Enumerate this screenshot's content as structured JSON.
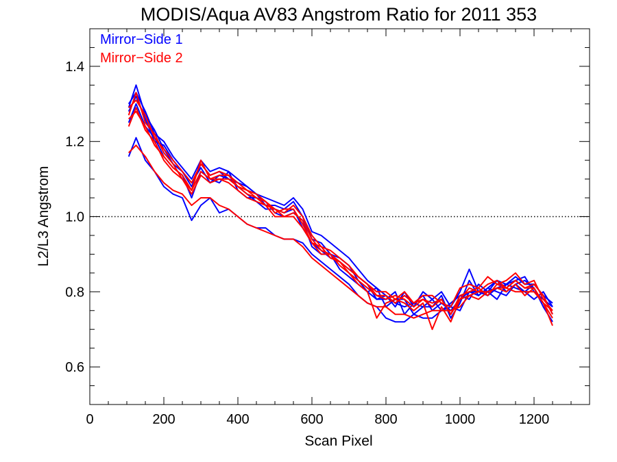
{
  "chart_data": {
    "type": "line",
    "title": "MODIS/Aqua AV83 Angstrom Ratio for 2011 353",
    "xlabel": "Scan Pixel",
    "ylabel": "L2/L3 Angstrom",
    "xlim": [
      0,
      1350
    ],
    "ylim": [
      0.5,
      1.5
    ],
    "xticks": [
      0,
      200,
      400,
      600,
      800,
      1000,
      1200
    ],
    "xtick_labels": [
      "0",
      "200",
      "400",
      "600",
      "800",
      "1000",
      "1200"
    ],
    "yticks": [
      0.6,
      0.8,
      1.0,
      1.2,
      1.4
    ],
    "ytick_labels": [
      "0.6",
      "0.8",
      "1.0",
      "1.2",
      "1.4"
    ],
    "reference_line": {
      "y": 1.0,
      "style": "dotted"
    },
    "legend": {
      "placement": "top-left",
      "entries": [
        {
          "label": "Mirror−Side 1",
          "color": "#0000ff"
        },
        {
          "label": "Mirror−Side 2",
          "color": "#ff0000"
        }
      ]
    },
    "x": [
      105,
      125,
      150,
      175,
      200,
      225,
      250,
      275,
      300,
      325,
      350,
      375,
      400,
      425,
      450,
      475,
      500,
      525,
      550,
      575,
      600,
      625,
      650,
      675,
      700,
      725,
      750,
      775,
      800,
      825,
      850,
      875,
      900,
      925,
      950,
      975,
      1000,
      1025,
      1050,
      1075,
      1100,
      1125,
      1150,
      1175,
      1200,
      1225,
      1250
    ],
    "series": [
      {
        "group": 1,
        "color": "#0000ff",
        "values": [
          1.29,
          1.35,
          1.27,
          1.23,
          1.18,
          1.14,
          1.12,
          1.08,
          1.14,
          1.11,
          1.12,
          1.1,
          1.08,
          1.06,
          1.04,
          1.02,
          1.02,
          1.01,
          1.02,
          0.97,
          0.93,
          0.91,
          0.89,
          0.88,
          0.86,
          0.84,
          0.82,
          0.78,
          0.79,
          0.77,
          0.76,
          0.77,
          0.79,
          0.75,
          0.77,
          0.75,
          0.78,
          0.8,
          0.8,
          0.79,
          0.81,
          0.82,
          0.83,
          0.84,
          0.8,
          0.78,
          0.76
        ]
      },
      {
        "group": 1,
        "color": "#0000ff",
        "values": [
          1.25,
          1.3,
          1.24,
          1.21,
          1.16,
          1.13,
          1.11,
          1.05,
          1.12,
          1.1,
          1.09,
          1.12,
          1.07,
          1.05,
          1.05,
          1.04,
          1.01,
          1.0,
          1.01,
          0.99,
          0.92,
          0.9,
          0.9,
          0.86,
          0.84,
          0.82,
          0.8,
          0.81,
          0.76,
          0.78,
          0.78,
          0.74,
          0.76,
          0.78,
          0.75,
          0.77,
          0.79,
          0.78,
          0.82,
          0.8,
          0.78,
          0.82,
          0.81,
          0.8,
          0.82,
          0.79,
          0.74
        ]
      },
      {
        "group": 1,
        "color": "#0000ff",
        "values": [
          1.28,
          1.32,
          1.26,
          1.2,
          1.19,
          1.15,
          1.12,
          1.09,
          1.13,
          1.09,
          1.11,
          1.1,
          1.09,
          1.08,
          1.06,
          1.03,
          1.03,
          1.02,
          1.04,
          1.0,
          0.94,
          0.93,
          0.9,
          0.89,
          0.87,
          0.83,
          0.8,
          0.78,
          0.78,
          0.8,
          0.74,
          0.77,
          0.76,
          0.76,
          0.79,
          0.73,
          0.77,
          0.83,
          0.79,
          0.81,
          0.83,
          0.8,
          0.82,
          0.83,
          0.81,
          0.76,
          0.72
        ]
      },
      {
        "group": 1,
        "color": "#0000ff",
        "values": [
          1.3,
          1.33,
          1.28,
          1.22,
          1.2,
          1.16,
          1.13,
          1.1,
          1.15,
          1.12,
          1.13,
          1.12,
          1.1,
          1.08,
          1.06,
          1.05,
          1.04,
          1.03,
          1.05,
          1.02,
          0.96,
          0.95,
          0.93,
          0.91,
          0.89,
          0.86,
          0.83,
          0.81,
          0.79,
          0.76,
          0.8,
          0.76,
          0.8,
          0.78,
          0.8,
          0.76,
          0.8,
          0.86,
          0.8,
          0.8,
          0.83,
          0.82,
          0.84,
          0.82,
          0.82,
          0.79,
          0.77
        ]
      },
      {
        "group": 1,
        "color": "#0000ff",
        "values": [
          1.16,
          1.21,
          1.15,
          1.12,
          1.08,
          1.06,
          1.05,
          0.99,
          1.03,
          1.05,
          1.01,
          1.02,
          1.0,
          0.98,
          0.97,
          0.97,
          0.95,
          0.94,
          0.94,
          0.93,
          0.9,
          0.88,
          0.86,
          0.84,
          0.82,
          0.79,
          0.77,
          0.76,
          0.73,
          0.72,
          0.72,
          0.74,
          0.73,
          0.73,
          0.75,
          0.76,
          0.75,
          0.8,
          0.79,
          0.81,
          0.8,
          0.79,
          0.82,
          0.8,
          0.78,
          0.8,
          0.76
        ]
      },
      {
        "group": 2,
        "color": "#ff0000",
        "values": [
          1.27,
          1.33,
          1.25,
          1.22,
          1.17,
          1.14,
          1.1,
          1.07,
          1.15,
          1.1,
          1.11,
          1.11,
          1.08,
          1.07,
          1.05,
          1.04,
          1.01,
          1.02,
          1.02,
          0.98,
          0.93,
          0.92,
          0.89,
          0.88,
          0.86,
          0.84,
          0.82,
          0.79,
          0.78,
          0.79,
          0.78,
          0.76,
          0.78,
          0.76,
          0.78,
          0.74,
          0.79,
          0.8,
          0.81,
          0.79,
          0.82,
          0.81,
          0.83,
          0.81,
          0.82,
          0.79,
          0.74
        ]
      },
      {
        "group": 2,
        "color": "#ff0000",
        "values": [
          1.24,
          1.29,
          1.23,
          1.2,
          1.15,
          1.12,
          1.1,
          1.06,
          1.11,
          1.09,
          1.1,
          1.09,
          1.07,
          1.05,
          1.04,
          1.03,
          1.0,
          1.0,
          1.0,
          0.97,
          0.93,
          0.9,
          0.9,
          0.87,
          0.85,
          0.82,
          0.8,
          0.73,
          0.77,
          0.78,
          0.77,
          0.75,
          0.77,
          0.7,
          0.76,
          0.72,
          0.78,
          0.79,
          0.8,
          0.8,
          0.81,
          0.8,
          0.82,
          0.79,
          0.81,
          0.77,
          0.71
        ]
      },
      {
        "group": 2,
        "color": "#ff0000",
        "values": [
          1.29,
          1.31,
          1.27,
          1.21,
          1.18,
          1.15,
          1.12,
          1.09,
          1.14,
          1.11,
          1.12,
          1.11,
          1.09,
          1.07,
          1.06,
          1.04,
          1.02,
          1.01,
          1.03,
          1.0,
          0.95,
          0.92,
          0.91,
          0.89,
          0.87,
          0.84,
          0.82,
          0.8,
          0.8,
          0.78,
          0.8,
          0.77,
          0.79,
          0.79,
          0.77,
          0.76,
          0.81,
          0.82,
          0.81,
          0.84,
          0.82,
          0.83,
          0.85,
          0.82,
          0.83,
          0.78,
          0.75
        ]
      },
      {
        "group": 2,
        "color": "#ff0000",
        "values": [
          1.26,
          1.28,
          1.24,
          1.19,
          1.16,
          1.13,
          1.11,
          1.07,
          1.12,
          1.1,
          1.1,
          1.1,
          1.08,
          1.06,
          1.05,
          1.03,
          1.02,
          1.0,
          1.01,
          0.99,
          0.94,
          0.91,
          0.9,
          0.88,
          0.85,
          0.83,
          0.81,
          0.79,
          0.79,
          0.77,
          0.79,
          0.77,
          0.78,
          0.77,
          0.78,
          0.74,
          0.78,
          0.81,
          0.8,
          0.82,
          0.83,
          0.81,
          0.83,
          0.81,
          0.81,
          0.77,
          0.73
        ]
      },
      {
        "group": 2,
        "color": "#ff0000",
        "values": [
          1.17,
          1.19,
          1.16,
          1.12,
          1.09,
          1.07,
          1.06,
          1.03,
          1.05,
          1.05,
          1.03,
          1.02,
          1.0,
          0.98,
          0.97,
          0.96,
          0.95,
          0.94,
          0.94,
          0.92,
          0.89,
          0.87,
          0.85,
          0.83,
          0.81,
          0.79,
          0.77,
          0.76,
          0.76,
          0.74,
          0.74,
          0.73,
          0.74,
          0.75,
          0.75,
          0.75,
          0.76,
          0.79,
          0.78,
          0.8,
          0.81,
          0.81,
          0.8,
          0.8,
          0.8,
          0.77,
          0.75
        ]
      }
    ]
  }
}
